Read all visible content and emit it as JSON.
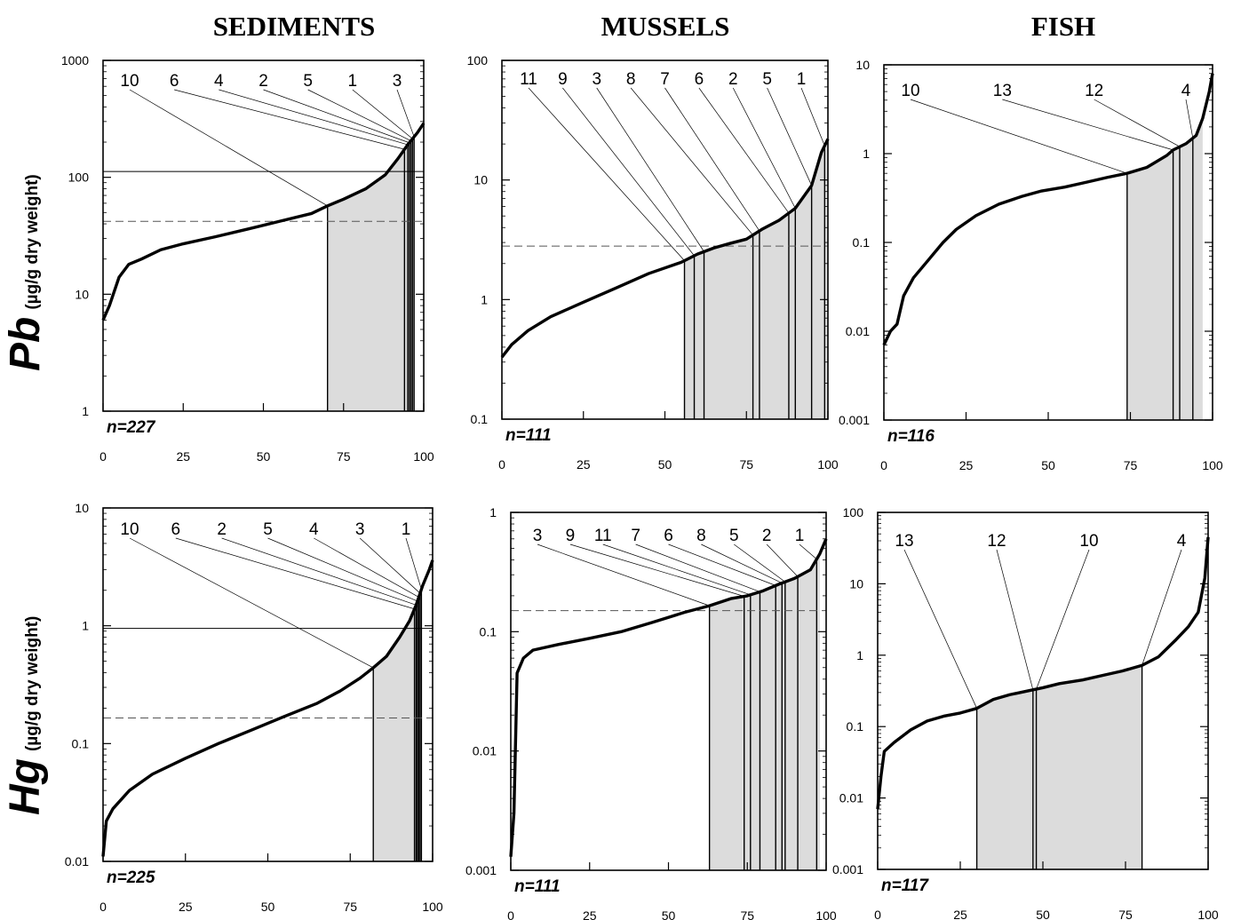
{
  "column_titles": [
    "SEDIMENTS",
    "MUSSELS",
    "FISH"
  ],
  "row_titles": [
    {
      "element": "Pb",
      "unit": "(µg/g dry weight)"
    },
    {
      "element": "Hg",
      "unit": "(µg/g dry weight)"
    }
  ],
  "chart_data": [
    {
      "type": "line",
      "id": "pb-sediments",
      "matrix": "SEDIMENTS",
      "element": "Pb",
      "n_label": "n=227",
      "xlim": [
        0,
        100
      ],
      "ylim": [
        1,
        1000
      ],
      "yscale": "log",
      "x_ticks": [
        "0",
        "25",
        "50",
        "75",
        "100"
      ],
      "y_ticks": [
        "1",
        "10",
        "100",
        "1000"
      ],
      "curve": [
        [
          0,
          6
        ],
        [
          2,
          8
        ],
        [
          5,
          14
        ],
        [
          8,
          18
        ],
        [
          12,
          20
        ],
        [
          18,
          24
        ],
        [
          25,
          27
        ],
        [
          35,
          31
        ],
        [
          45,
          36
        ],
        [
          55,
          42
        ],
        [
          65,
          49
        ],
        [
          70,
          57
        ],
        [
          75,
          65
        ],
        [
          82,
          80
        ],
        [
          88,
          105
        ],
        [
          92,
          145
        ],
        [
          95,
          190
        ],
        [
          98,
          240
        ],
        [
          100,
          290
        ]
      ],
      "reference_lines": [
        {
          "value": 112,
          "style": "solid"
        },
        {
          "value": 42,
          "style": "dashed"
        }
      ],
      "shaded_range": [
        70,
        97
      ],
      "sites": [
        {
          "label": "10",
          "x": 70
        },
        {
          "label": "6",
          "x": 94
        },
        {
          "label": "4",
          "x": 95
        },
        {
          "label": "2",
          "x": 95.5
        },
        {
          "label": "5",
          "x": 96
        },
        {
          "label": "1",
          "x": 96.5
        },
        {
          "label": "3",
          "x": 97
        }
      ]
    },
    {
      "type": "line",
      "id": "pb-mussels",
      "matrix": "MUSSELS",
      "element": "Pb",
      "n_label": "n=111",
      "xlim": [
        0,
        100
      ],
      "ylim": [
        0.1,
        100
      ],
      "yscale": "log",
      "x_ticks": [
        "0",
        "25",
        "50",
        "75",
        "100"
      ],
      "y_ticks": [
        "0.1",
        "1",
        "10",
        "100"
      ],
      "curve": [
        [
          0,
          0.33
        ],
        [
          3,
          0.42
        ],
        [
          8,
          0.55
        ],
        [
          15,
          0.72
        ],
        [
          25,
          0.95
        ],
        [
          35,
          1.25
        ],
        [
          45,
          1.65
        ],
        [
          55,
          2.05
        ],
        [
          60,
          2.4
        ],
        [
          65,
          2.7
        ],
        [
          70,
          2.95
        ],
        [
          75,
          3.2
        ],
        [
          80,
          3.9
        ],
        [
          85,
          4.6
        ],
        [
          90,
          5.8
        ],
        [
          95,
          9
        ],
        [
          98,
          17
        ],
        [
          100,
          22
        ]
      ],
      "reference_lines": [
        {
          "value": 2.8,
          "style": "dashed"
        }
      ],
      "shaded_range": [
        56,
        100
      ],
      "sites": [
        {
          "label": "11",
          "x": 56
        },
        {
          "label": "9",
          "x": 59
        },
        {
          "label": "3",
          "x": 62
        },
        {
          "label": "8",
          "x": 77
        },
        {
          "label": "7",
          "x": 79
        },
        {
          "label": "6",
          "x": 88
        },
        {
          "label": "2",
          "x": 90
        },
        {
          "label": "5",
          "x": 95
        },
        {
          "label": "1",
          "x": 99
        }
      ]
    },
    {
      "type": "line",
      "id": "pb-fish",
      "matrix": "FISH",
      "element": "Pb",
      "n_label": "n=116",
      "xlim": [
        0,
        100
      ],
      "ylim": [
        0.001,
        10
      ],
      "yscale": "log",
      "x_ticks": [
        "0",
        "25",
        "50",
        "75",
        "100"
      ],
      "y_ticks": [
        "0.001",
        "0.01",
        "0.1",
        "1",
        "10"
      ],
      "curve": [
        [
          0,
          0.007
        ],
        [
          2,
          0.01
        ],
        [
          4,
          0.012
        ],
        [
          6,
          0.025
        ],
        [
          9,
          0.04
        ],
        [
          13,
          0.06
        ],
        [
          18,
          0.1
        ],
        [
          22,
          0.14
        ],
        [
          28,
          0.2
        ],
        [
          35,
          0.27
        ],
        [
          42,
          0.33
        ],
        [
          48,
          0.38
        ],
        [
          55,
          0.42
        ],
        [
          62,
          0.48
        ],
        [
          68,
          0.54
        ],
        [
          74,
          0.6
        ],
        [
          80,
          0.7
        ],
        [
          86,
          0.95
        ],
        [
          88,
          1.1
        ],
        [
          92,
          1.3
        ],
        [
          95,
          1.6
        ],
        [
          97,
          2.5
        ],
        [
          99,
          5
        ],
        [
          100,
          8
        ]
      ],
      "shaded_range": [
        74,
        97
      ],
      "sites": [
        {
          "label": "10",
          "x": 74
        },
        {
          "label": "13",
          "x": 88
        },
        {
          "label": "12",
          "x": 90
        },
        {
          "label": "4",
          "x": 94
        }
      ]
    },
    {
      "type": "line",
      "id": "hg-sediments",
      "matrix": "SEDIMENTS",
      "element": "Hg",
      "n_label": "n=225",
      "xlim": [
        0,
        100
      ],
      "ylim": [
        0.01,
        10
      ],
      "yscale": "log",
      "x_ticks": [
        "0",
        "25",
        "50",
        "75",
        "100"
      ],
      "y_ticks": [
        "0.01",
        "0.1",
        "1",
        "10"
      ],
      "curve": [
        [
          0,
          0.011
        ],
        [
          1,
          0.022
        ],
        [
          3,
          0.028
        ],
        [
          8,
          0.04
        ],
        [
          15,
          0.055
        ],
        [
          25,
          0.075
        ],
        [
          35,
          0.1
        ],
        [
          45,
          0.13
        ],
        [
          55,
          0.17
        ],
        [
          65,
          0.22
        ],
        [
          72,
          0.28
        ],
        [
          78,
          0.36
        ],
        [
          82,
          0.44
        ],
        [
          86,
          0.55
        ],
        [
          90,
          0.8
        ],
        [
          93,
          1.1
        ],
        [
          95,
          1.5
        ],
        [
          97,
          2.2
        ],
        [
          99,
          3
        ],
        [
          100,
          3.6
        ]
      ],
      "reference_lines": [
        {
          "value": 0.95,
          "style": "solid"
        },
        {
          "value": 0.165,
          "style": "dashed"
        }
      ],
      "shaded_range": [
        82,
        96
      ],
      "sites": [
        {
          "label": "10",
          "x": 82
        },
        {
          "label": "6",
          "x": 94.5
        },
        {
          "label": "2",
          "x": 95
        },
        {
          "label": "5",
          "x": 95.4
        },
        {
          "label": "4",
          "x": 95.8
        },
        {
          "label": "3",
          "x": 96.2
        },
        {
          "label": "1",
          "x": 96.6
        }
      ]
    },
    {
      "type": "line",
      "id": "hg-mussels",
      "matrix": "MUSSELS",
      "element": "Hg",
      "n_label": "n=111",
      "xlim": [
        0,
        100
      ],
      "ylim": [
        0.001,
        1
      ],
      "yscale": "log",
      "x_ticks": [
        "0",
        "25",
        "50",
        "75",
        "100"
      ],
      "y_ticks": [
        "0.001",
        "0.01",
        "0.1",
        "1"
      ],
      "curve": [
        [
          0,
          0.0013
        ],
        [
          1,
          0.003
        ],
        [
          2,
          0.045
        ],
        [
          4,
          0.06
        ],
        [
          7,
          0.07
        ],
        [
          15,
          0.078
        ],
        [
          25,
          0.088
        ],
        [
          35,
          0.1
        ],
        [
          45,
          0.12
        ],
        [
          55,
          0.145
        ],
        [
          63,
          0.165
        ],
        [
          70,
          0.19
        ],
        [
          75,
          0.2
        ],
        [
          80,
          0.22
        ],
        [
          85,
          0.25
        ],
        [
          90,
          0.28
        ],
        [
          95,
          0.33
        ],
        [
          98,
          0.45
        ],
        [
          100,
          0.6
        ]
      ],
      "reference_lines": [
        {
          "value": 0.15,
          "style": "dashed"
        }
      ],
      "shaded_range": [
        63,
        98
      ],
      "sites": [
        {
          "label": "3",
          "x": 63
        },
        {
          "label": "9",
          "x": 74
        },
        {
          "label": "11",
          "x": 76
        },
        {
          "label": "7",
          "x": 79
        },
        {
          "label": "6",
          "x": 84
        },
        {
          "label": "8",
          "x": 86
        },
        {
          "label": "5",
          "x": 87
        },
        {
          "label": "2",
          "x": 91
        },
        {
          "label": "1",
          "x": 97
        }
      ]
    },
    {
      "type": "line",
      "id": "hg-fish",
      "matrix": "FISH",
      "element": "Hg",
      "n_label": "n=117",
      "xlim": [
        0,
        100
      ],
      "ylim": [
        0.001,
        100
      ],
      "yscale": "log",
      "x_ticks": [
        "0",
        "25",
        "50",
        "75",
        "100"
      ],
      "y_ticks": [
        "0.001",
        "0.01",
        "0.1",
        "1",
        "10",
        "100"
      ],
      "curve": [
        [
          0,
          0.007
        ],
        [
          1,
          0.02
        ],
        [
          2,
          0.045
        ],
        [
          5,
          0.06
        ],
        [
          10,
          0.09
        ],
        [
          15,
          0.12
        ],
        [
          20,
          0.14
        ],
        [
          25,
          0.155
        ],
        [
          30,
          0.18
        ],
        [
          35,
          0.24
        ],
        [
          40,
          0.28
        ],
        [
          46,
          0.32
        ],
        [
          50,
          0.35
        ],
        [
          55,
          0.4
        ],
        [
          62,
          0.45
        ],
        [
          68,
          0.52
        ],
        [
          74,
          0.6
        ],
        [
          80,
          0.72
        ],
        [
          85,
          0.95
        ],
        [
          90,
          1.6
        ],
        [
          94,
          2.5
        ],
        [
          97,
          4
        ],
        [
          99,
          12
        ],
        [
          100,
          45
        ]
      ],
      "shaded_range": [
        30,
        80
      ],
      "sites": [
        {
          "label": "13",
          "x": 30
        },
        {
          "label": "12",
          "x": 47
        },
        {
          "label": "10",
          "x": 48
        },
        {
          "label": "4",
          "x": 80
        }
      ]
    }
  ]
}
